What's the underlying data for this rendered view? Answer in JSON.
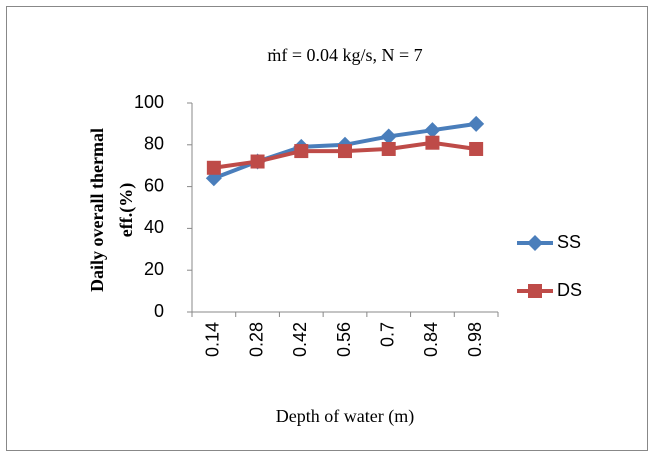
{
  "chart_data": {
    "type": "line",
    "title": "ṁf = 0.04 kg/s, N = 7",
    "x_label": "Depth of water (m)",
    "y_label_lines": [
      "Daily overall thermal",
      "eff.(%)"
    ],
    "categories": [
      "0.14",
      "0.28",
      "0.42",
      "0.56",
      "0.7",
      "0.84",
      "0.98"
    ],
    "series": [
      {
        "name": "SS",
        "color": "#4a7ebb",
        "marker": "diamond",
        "values": [
          64,
          72,
          79,
          80,
          84,
          87,
          90
        ]
      },
      {
        "name": "DS",
        "color": "#be4b48",
        "marker": "square",
        "values": [
          69,
          72,
          77,
          77,
          78,
          81,
          78
        ]
      }
    ],
    "ylim": [
      0,
      100
    ],
    "yticks": [
      0,
      20,
      40,
      60,
      80,
      100
    ],
    "grid": false,
    "legend": "right"
  }
}
